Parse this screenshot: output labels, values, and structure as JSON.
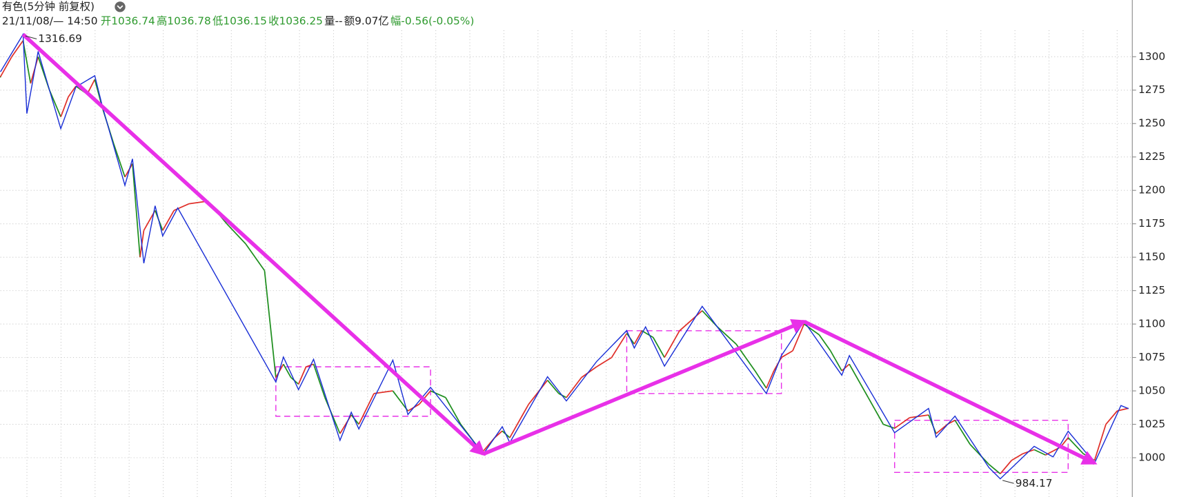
{
  "chart_data": {
    "type": "line",
    "title": "有色(5分钟 前复权)",
    "info": [
      {
        "text": "21/11/08/— 14:50",
        "color": "#222222"
      },
      {
        "text": "开1036.74",
        "color": "#2e9a2e"
      },
      {
        "text": "高1036.78",
        "color": "#2e9a2e"
      },
      {
        "text": "低1036.15",
        "color": "#2e9a2e"
      },
      {
        "text": "收1036.25",
        "color": "#2e9a2e"
      },
      {
        "text": "量--",
        "color": "#222222"
      },
      {
        "text": "额9.07亿",
        "color": "#222222"
      },
      {
        "text": "幅-0.56(-0.05%)",
        "color": "#2e9a2e"
      }
    ],
    "xlim": [
      0,
      300
    ],
    "ylim": [
      970.6,
      1319.8
    ],
    "yticks": [
      1000,
      1025,
      1050,
      1075,
      1100,
      1125,
      1150,
      1175,
      1200,
      1225,
      1250,
      1275,
      1300
    ],
    "grid": true,
    "price": {
      "up_color": "#e0302a",
      "down_color": "#1f8f1f",
      "x": [
        0,
        3,
        6,
        8,
        10,
        13,
        16,
        18,
        20,
        23,
        25,
        27,
        30,
        33,
        35,
        37,
        38,
        41,
        43,
        46,
        50,
        55,
        60,
        65,
        70,
        73,
        75,
        77,
        79,
        81,
        83,
        86,
        90,
        93,
        95,
        99,
        104,
        108,
        111,
        114,
        118,
        122,
        126,
        128,
        131,
        133,
        135,
        140,
        145,
        148,
        150,
        154,
        158,
        162,
        166,
        168,
        170,
        173,
        176,
        180,
        186,
        190,
        195,
        200,
        203,
        205,
        207,
        210,
        213,
        217,
        220,
        223,
        225,
        230,
        234,
        237,
        241,
        246,
        248,
        251,
        253,
        257,
        262,
        265,
        268,
        271,
        274,
        277,
        279,
        281,
        283,
        287,
        290,
        293,
        296,
        299
      ],
      "values": [
        1285,
        1300,
        1312,
        1280,
        1300,
        1275,
        1255,
        1270,
        1278,
        1272,
        1283,
        1262,
        1235,
        1210,
        1220,
        1150,
        1170,
        1185,
        1170,
        1185,
        1190,
        1192,
        1175,
        1160,
        1140,
        1060,
        1070,
        1060,
        1055,
        1068,
        1070,
        1045,
        1018,
        1032,
        1025,
        1048,
        1050,
        1035,
        1040,
        1050,
        1045,
        1025,
        1010,
        1005,
        1015,
        1020,
        1015,
        1040,
        1058,
        1048,
        1045,
        1060,
        1068,
        1075,
        1093,
        1085,
        1095,
        1090,
        1075,
        1095,
        1110,
        1098,
        1085,
        1065,
        1052,
        1065,
        1075,
        1080,
        1100,
        1092,
        1080,
        1065,
        1070,
        1045,
        1025,
        1022,
        1030,
        1032,
        1018,
        1025,
        1028,
        1010,
        995,
        988,
        998,
        1003,
        1006,
        1002,
        1005,
        1008,
        1015,
        1003,
        998,
        1025,
        1035,
        1037
      ]
    },
    "zigzag": {
      "color": "#1a2fd6",
      "x": [
        0,
        6,
        7,
        10,
        16,
        20,
        25,
        27,
        33,
        35,
        38,
        41,
        43,
        47,
        73,
        75,
        79,
        83,
        90,
        93,
        95,
        104,
        108,
        114,
        128,
        133,
        135,
        145,
        150,
        158,
        166,
        168,
        171,
        176,
        186,
        203,
        207,
        213,
        223,
        225,
        237,
        246,
        248,
        253,
        262,
        265,
        274,
        279,
        283,
        290,
        297,
        299
      ],
      "values": [
        1288.7,
        1316.69,
        1257.5,
        1304,
        1246.2,
        1277.4,
        1285.8,
        1263.2,
        1203.8,
        1223.6,
        1145.5,
        1188.5,
        1165.9,
        1186.8,
        1056.6,
        1075.3,
        1050.9,
        1073.6,
        1013,
        1034,
        1021.5,
        1073,
        1032.3,
        1052.6,
        1002.8,
        1023.2,
        1011.3,
        1060.6,
        1042.5,
        1071.9,
        1095.1,
        1082.1,
        1097.9,
        1068.5,
        1113.2,
        1048.1,
        1076.4,
        1101.9,
        1061.7,
        1076.4,
        1018.7,
        1036.8,
        1015.3,
        1031.1,
        992.6,
        984.17,
        1008.5,
        1000.6,
        1019.8,
        996,
        1039,
        1036.7
      ]
    },
    "trends": {
      "color": "#e830e8",
      "lines": [
        {
          "x": [
            6,
            128
          ],
          "values": [
            1316.69,
            1002.8
          ]
        },
        {
          "x": [
            128,
            213
          ],
          "values": [
            1002.8,
            1101.9
          ]
        },
        {
          "x": [
            213,
            290
          ],
          "values": [
            1101.9,
            996
          ]
        }
      ]
    },
    "boxes": [
      {
        "x": [
          73,
          114
        ],
        "values": [
          1068,
          1031
        ]
      },
      {
        "x": [
          166,
          207
        ],
        "values": [
          1095,
          1048
        ]
      },
      {
        "x": [
          237,
          283
        ],
        "values": [
          1028,
          989
        ]
      }
    ],
    "high_label": {
      "x": 6,
      "value": 1316.69
    },
    "low_label": {
      "x": 265,
      "value": 984.17
    }
  }
}
